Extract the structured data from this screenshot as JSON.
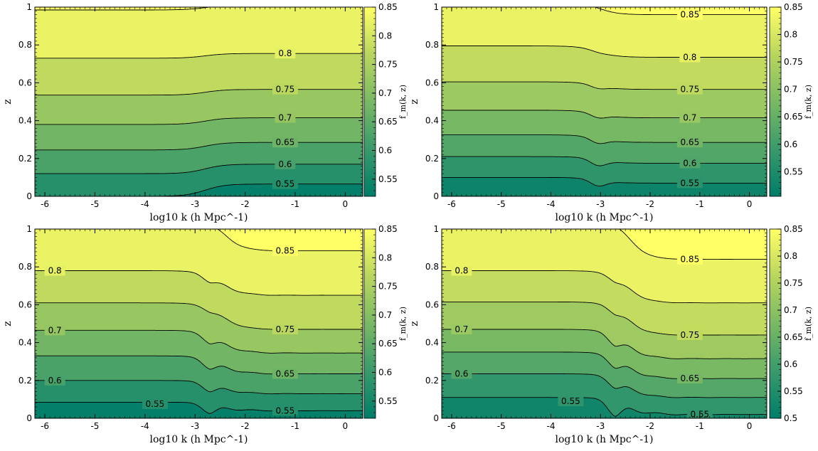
{
  "chart_data": [
    {
      "type": "contour",
      "xlabel": "log10 k (h Mpc^-1)",
      "ylabel": "z",
      "colorbar_label": "f_m(k, z)",
      "xlim": [
        -6.2,
        0.35
      ],
      "ylim": [
        0,
        1
      ],
      "x_ticks": [
        -6,
        -5,
        -4,
        -3,
        -2,
        -1,
        0
      ],
      "y_ticks": [
        0,
        0.2,
        0.4,
        0.6,
        0.8,
        1
      ],
      "colorbar_range": [
        0.52,
        0.85
      ],
      "colorbar_ticks": [
        0.55,
        0.6,
        0.65,
        0.7,
        0.75,
        0.8,
        0.85
      ],
      "colormap": [
        "#007d6a",
        "#399a6b",
        "#79b964",
        "#b9d65e",
        "#ffff66"
      ],
      "contours": [
        {
          "level": 0.55,
          "z_low_k": 0.0,
          "z_high_k": 0.065,
          "label_x": -1.2,
          "label_y": 0.065
        },
        {
          "level": 0.6,
          "z_low_k": 0.12,
          "z_high_k": 0.17,
          "label_x": -1.2,
          "label_y": 0.17
        },
        {
          "level": 0.65,
          "z_low_k": 0.245,
          "z_high_k": 0.285,
          "label_x": -1.2,
          "label_y": 0.285
        },
        {
          "level": 0.7,
          "z_low_k": 0.38,
          "z_high_k": 0.415,
          "label_x": -1.2,
          "label_y": 0.415
        },
        {
          "level": 0.75,
          "z_low_k": 0.535,
          "z_high_k": 0.565,
          "label_x": -1.2,
          "label_y": 0.565
        },
        {
          "level": 0.8,
          "z_low_k": 0.73,
          "z_high_k": 0.755,
          "label_x": -1.2,
          "label_y": 0.755
        },
        {
          "level": 0.85,
          "z_low_k": 0.985,
          "z_high_k": 1.01
        }
      ]
    },
    {
      "type": "contour",
      "xlabel": "log10 k (h Mpc^-1)",
      "ylabel": "z",
      "colorbar_label": "f_m(k, z)",
      "xlim": [
        -6.2,
        0.35
      ],
      "ylim": [
        0,
        1
      ],
      "x_ticks": [
        -6,
        -5,
        -4,
        -3,
        -2,
        -1,
        0
      ],
      "y_ticks": [
        0,
        0.2,
        0.4,
        0.6,
        0.8,
        1
      ],
      "colorbar_range": [
        0.505,
        0.85
      ],
      "colorbar_ticks": [
        0.55,
        0.6,
        0.65,
        0.7,
        0.75,
        0.8,
        0.85
      ],
      "colormap": [
        "#007d6a",
        "#399a6b",
        "#79b964",
        "#b9d65e",
        "#ffff66"
      ],
      "contours": [
        {
          "level": 0.55,
          "z_low_k": 0.1,
          "z_high_k": 0.07,
          "dip_z": 0.04,
          "label_x": -1.2,
          "label_y": 0.07
        },
        {
          "level": 0.6,
          "z_low_k": 0.21,
          "z_high_k": 0.175,
          "dip_z": 0.145,
          "label_x": -1.2,
          "label_y": 0.175
        },
        {
          "level": 0.65,
          "z_low_k": 0.325,
          "z_high_k": 0.285,
          "dip_z": 0.26,
          "label_x": -1.2,
          "label_y": 0.285
        },
        {
          "level": 0.7,
          "z_low_k": 0.455,
          "z_high_k": 0.415,
          "dip_z": 0.395,
          "label_x": -1.2,
          "label_y": 0.415
        },
        {
          "level": 0.75,
          "z_low_k": 0.605,
          "z_high_k": 0.565,
          "dip_z": 0.55,
          "label_x": -1.2,
          "label_y": 0.565
        },
        {
          "level": 0.8,
          "z_low_k": 0.795,
          "z_high_k": 0.735,
          "dip_z": 0.73,
          "label_x": -1.2,
          "label_y": 0.735
        },
        {
          "level": 0.85,
          "z_low_k": 1.03,
          "z_high_k": 0.96,
          "dip_z": 0.96,
          "label_x": -1.2,
          "label_y": 0.96
        }
      ]
    },
    {
      "type": "contour",
      "xlabel": "log10 k (h Mpc^-1)",
      "ylabel": "z",
      "colorbar_label": "f_m(k, z)",
      "xlim": [
        -6.2,
        0.35
      ],
      "ylim": [
        0,
        1
      ],
      "x_ticks": [
        -6,
        -5,
        -4,
        -3,
        -2,
        -1,
        0
      ],
      "y_ticks": [
        0,
        0.2,
        0.4,
        0.6,
        0.8,
        1
      ],
      "colorbar_range": [
        0.52,
        0.85
      ],
      "colorbar_ticks": [
        0.55,
        0.6,
        0.65,
        0.7,
        0.75,
        0.8,
        0.85
      ],
      "colormap": [
        "#007d6a",
        "#399a6b",
        "#79b964",
        "#b9d65e",
        "#ffff66"
      ],
      "contours": [
        {
          "level": 0.55,
          "z_low_k": 0.085,
          "z_high_k": 0.04,
          "dip_z": -0.01,
          "label_x": -3.8,
          "label_y": 0.075,
          "label2_x": -1.2,
          "label2_y": 0.04
        },
        {
          "level": 0.6,
          "z_low_k": 0.2,
          "z_high_k": 0.13,
          "dip_z": 0.085,
          "label_x": -5.8,
          "label_y": 0.2
        },
        {
          "level": 0.65,
          "z_low_k": 0.33,
          "z_high_k": 0.235,
          "dip_z": 0.185,
          "label_x": -1.2,
          "label_y": 0.235
        },
        {
          "level": 0.7,
          "z_low_k": 0.465,
          "z_high_k": 0.345,
          "dip_z": 0.3,
          "label_x": -5.8,
          "label_y": 0.465
        },
        {
          "level": 0.75,
          "z_low_k": 0.61,
          "z_high_k": 0.47,
          "dip_z": 0.45,
          "label_x": -1.2,
          "label_y": 0.47
        },
        {
          "level": 0.8,
          "z_low_k": 0.78,
          "z_high_k": 0.65,
          "dip_z": 0.615,
          "label_x": -5.8,
          "label_y": 0.78
        },
        {
          "level": 0.85,
          "z_low_k": 1.08,
          "z_high_k": 0.885,
          "dip_z": 0.87,
          "label_x": -1.2,
          "label_y": 0.885
        }
      ]
    },
    {
      "type": "contour",
      "xlabel": "log10 k (h Mpc^-1)",
      "ylabel": "z",
      "colorbar_label": "f_m(k, z)",
      "xlim": [
        -6.2,
        0.35
      ],
      "ylim": [
        0,
        1
      ],
      "x_ticks": [
        -6,
        -5,
        -4,
        -3,
        -2,
        -1,
        0
      ],
      "y_ticks": [
        0,
        0.2,
        0.4,
        0.6,
        0.8,
        1
      ],
      "colorbar_range": [
        0.5,
        0.85
      ],
      "colorbar_ticks": [
        0.5,
        0.55,
        0.6,
        0.65,
        0.7,
        0.75,
        0.8,
        0.85
      ],
      "colormap": [
        "#007d6a",
        "#399a6b",
        "#79b964",
        "#b9d65e",
        "#ffff66"
      ],
      "contours": [
        {
          "level": 0.55,
          "z_low_k": 0.11,
          "z_high_k": 0.02,
          "dip_z": -0.06,
          "label_x": -3.6,
          "label_y": 0.09,
          "label2_x": -1.0,
          "label2_y": 0.02
        },
        {
          "level": 0.6,
          "z_low_k": 0.235,
          "z_high_k": 0.11,
          "dip_z": 0.06,
          "label_x": -5.8,
          "label_y": 0.235
        },
        {
          "level": 0.65,
          "z_low_k": 0.35,
          "z_high_k": 0.21,
          "dip_z": 0.155,
          "label_x": -1.2,
          "label_y": 0.21
        },
        {
          "level": 0.7,
          "z_low_k": 0.47,
          "z_high_k": 0.315,
          "dip_z": 0.26,
          "label_x": -5.8,
          "label_y": 0.47
        },
        {
          "level": 0.75,
          "z_low_k": 0.615,
          "z_high_k": 0.44,
          "dip_z": 0.41,
          "label_x": -1.2,
          "label_y": 0.44
        },
        {
          "level": 0.8,
          "z_low_k": 0.78,
          "z_high_k": 0.61,
          "dip_z": 0.585,
          "label_x": -5.8,
          "label_y": 0.78
        },
        {
          "level": 0.85,
          "z_low_k": 1.08,
          "z_high_k": 0.84,
          "dip_z": 0.83,
          "label_x": -1.2,
          "label_y": 0.84
        }
      ]
    }
  ]
}
